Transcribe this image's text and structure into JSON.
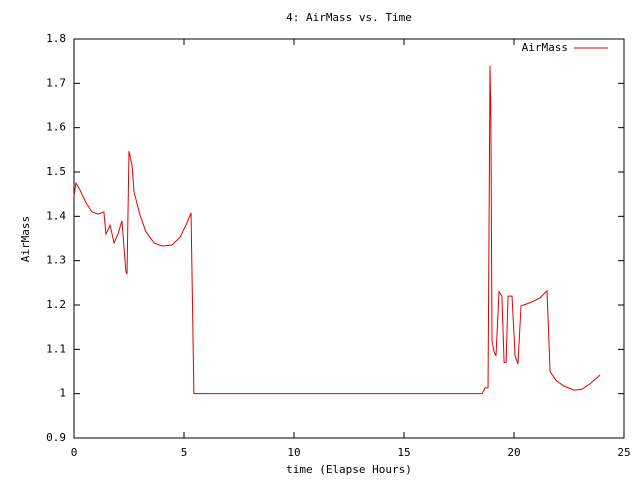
{
  "chart_data": {
    "type": "line",
    "title": "4: AirMass vs. Time",
    "x_label": "time (Elapse Hours)",
    "y_label": "AirMass",
    "x": [
      0,
      0.09,
      0.27,
      0.55,
      0.82,
      1.09,
      1.36,
      1.45,
      1.64,
      1.82,
      2.0,
      2.18,
      2.36,
      2.41,
      2.5,
      2.64,
      2.73,
      3.0,
      3.27,
      3.64,
      4.0,
      4.45,
      4.82,
      5.09,
      5.32,
      5.45,
      18.55,
      18.68,
      18.82,
      18.91,
      18.95,
      19.0,
      19.09,
      19.18,
      19.32,
      19.45,
      19.55,
      19.64,
      19.73,
      19.91,
      20.05,
      20.18,
      20.32,
      20.73,
      21.18,
      21.5,
      21.64,
      21.91,
      22.27,
      22.73,
      23.09,
      23.45,
      23.91
    ],
    "series": [
      {
        "name": "AirMass",
        "color": "#e00000",
        "values": [
          1.446,
          1.475,
          1.46,
          1.43,
          1.41,
          1.405,
          1.41,
          1.36,
          1.38,
          1.34,
          1.36,
          1.39,
          1.275,
          1.27,
          1.547,
          1.515,
          1.455,
          1.403,
          1.365,
          1.34,
          1.333,
          1.335,
          1.353,
          1.38,
          1.408,
          1.0,
          1.0,
          1.013,
          1.013,
          1.74,
          1.617,
          1.12,
          1.095,
          1.085,
          1.23,
          1.22,
          1.07,
          1.07,
          1.22,
          1.22,
          1.085,
          1.067,
          1.198,
          1.205,
          1.216,
          1.232,
          1.05,
          1.03,
          1.017,
          1.008,
          1.01,
          1.022,
          1.042
        ]
      }
    ],
    "xlim": [
      0,
      25
    ],
    "xticks": [
      0,
      5,
      10,
      15,
      20,
      25
    ],
    "ylim": [
      0.9,
      1.8
    ],
    "yticks": [
      0.9,
      1,
      1.1,
      1.2,
      1.3,
      1.4,
      1.5,
      1.6,
      1.7,
      1.8
    ],
    "grid": false,
    "legend": "top-right"
  }
}
